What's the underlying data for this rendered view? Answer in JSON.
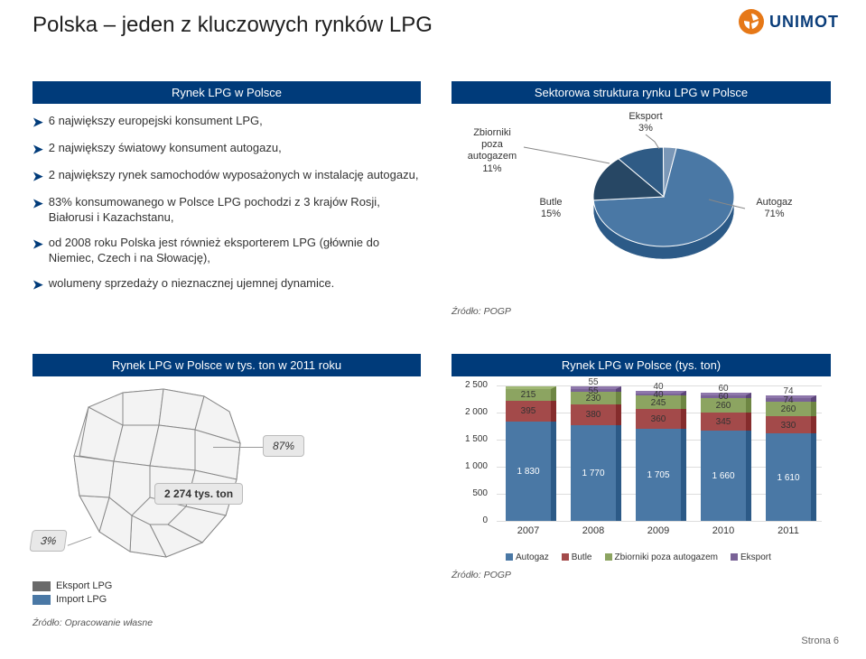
{
  "title": "Polska – jeden z kluczowych rynków LPG",
  "logo": {
    "text": "UNIMOT",
    "icon_color": "#e67817",
    "text_color": "#0a3d7a"
  },
  "left_box_title": "Rynek LPG w Polsce",
  "bullets": [
    "6 największy europejski konsument LPG,",
    "2 największy światowy konsument autogazu,",
    "2 największy rynek samochodów wyposażonych w instalację autogazu,",
    "83% konsumowanego w Polsce LPG pochodzi z 3 krajów  Rosji, Białorusi i Kazachstanu,",
    "od 2008 roku Polska jest również eksporterem LPG (głównie do Niemiec, Czech i na Słowację),",
    "wolumeny sprzedaży o nieznacznej ujemnej dynamice."
  ],
  "pie": {
    "title": "Sektorowa struktura rynku LPG w Polsce",
    "source": "Źródło: POGP",
    "slices": [
      {
        "label": "Zbiorniki poza autogazem",
        "value": 11,
        "color": "#2f5b85",
        "label_text": "Zbiorniki\npoza\nautogazem\n11%"
      },
      {
        "label": "Eksport",
        "value": 3,
        "color": "#7a97b7",
        "label_text": "Eksport\n3%"
      },
      {
        "label": "Autogaz",
        "value": 71,
        "color": "#4a78a5",
        "label_text": "Autogaz\n71%"
      },
      {
        "label": "Butle",
        "value": 15,
        "color": "#274764",
        "label_text": "Butle\n15%"
      }
    ]
  },
  "map_box_title": "Rynek LPG w Polsce w tys. ton w 2011 roku",
  "map": {
    "callout_87": "87%",
    "callout_ton": "2 274 tys. ton",
    "callout_3": "3%"
  },
  "bar_box_title": "Rynek LPG w Polsce (tys. ton)",
  "bar_chart": {
    "y_max": 2500,
    "y_step": 500,
    "y_ticks": [
      "0",
      "500",
      "1 000",
      "1 500",
      "2 000",
      "2 500"
    ],
    "categories": [
      "2007",
      "2008",
      "2009",
      "2010",
      "2011"
    ],
    "series_colors": {
      "Autogaz": "#4a78a5",
      "Butle": "#a34a4a",
      "Zbiorniki": "#8ca461",
      "Eksport": "#7a6397"
    },
    "data": [
      {
        "year": "2007",
        "Autogaz": 1830,
        "Butle": 395,
        "Zbiorniki": 215,
        "Eksport": 0,
        "top_label": ""
      },
      {
        "year": "2008",
        "Autogaz": 1770,
        "Butle": 380,
        "Zbiorniki": 230,
        "Eksport": 55,
        "top_label": "55"
      },
      {
        "year": "2009",
        "Autogaz": 1705,
        "Butle": 360,
        "Zbiorniki": 245,
        "Eksport": 40,
        "top_label": "40"
      },
      {
        "year": "2010",
        "Autogaz": 1660,
        "Butle": 345,
        "Zbiorniki": 260,
        "Eksport": 60,
        "top_label": "60"
      },
      {
        "year": "2011",
        "Autogaz": 1610,
        "Butle": 330,
        "Zbiorniki": 260,
        "Eksport": 74,
        "top_label": "74"
      }
    ],
    "legend": [
      "Autogaz",
      "Butle",
      "Zbiorniki poza autogazem",
      "Eksport"
    ],
    "source": "Źródło: POGP"
  },
  "footer": {
    "eksport_label": "Eksport LPG",
    "eksport_color": "#6a6a6a",
    "import_label": "Import LPG",
    "import_color": "#4a78a5",
    "source": "Źródło: Opracowanie własne",
    "page_no": "Strona 6"
  }
}
